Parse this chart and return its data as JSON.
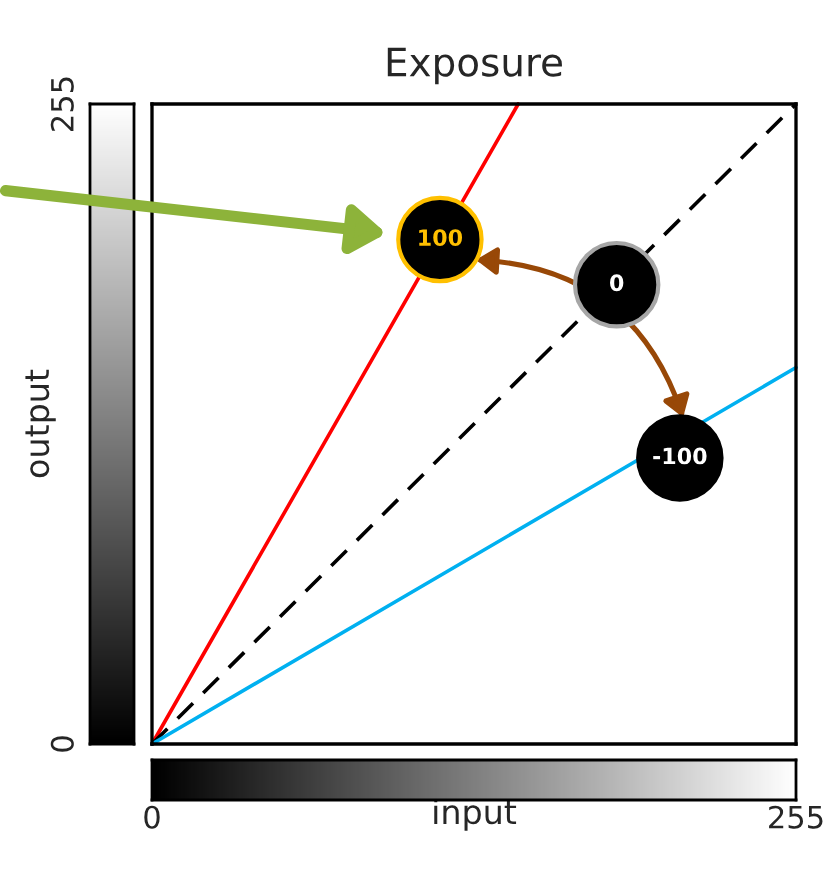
{
  "chart_data": {
    "type": "line",
    "title": "Exposure",
    "xlabel": "input",
    "ylabel": "output",
    "xlim": [
      0,
      255
    ],
    "ylim": [
      0,
      255
    ],
    "xticks": [
      0,
      255
    ],
    "yticks": [
      0,
      255
    ],
    "series": [
      {
        "color": "#ff0000",
        "x": [
          0,
          145
        ],
        "values": [
          0,
          255
        ],
        "line_style": "solid"
      },
      {
        "color": "#000000",
        "x": [
          0,
          255
        ],
        "values": [
          0,
          255
        ],
        "line_style": "dashed"
      },
      {
        "color": "#00b0f0",
        "x": [
          0,
          255
        ],
        "values": [
          0,
          150
        ],
        "line_style": "solid"
      },
      {
        "type": "scatter",
        "name": "100",
        "marker": "circle",
        "color": "#000000",
        "x": [
          114
        ],
        "values": [
          201
        ]
      },
      {
        "type": "scatter",
        "name": "0",
        "marker": "circle",
        "color": "#000000",
        "x": [
          184
        ],
        "values": [
          183
        ]
      },
      {
        "type": "scatter",
        "name": "-100",
        "marker": "circle",
        "color": "#000000",
        "x": [
          209
        ],
        "values": [
          114
        ]
      }
    ]
  }
}
